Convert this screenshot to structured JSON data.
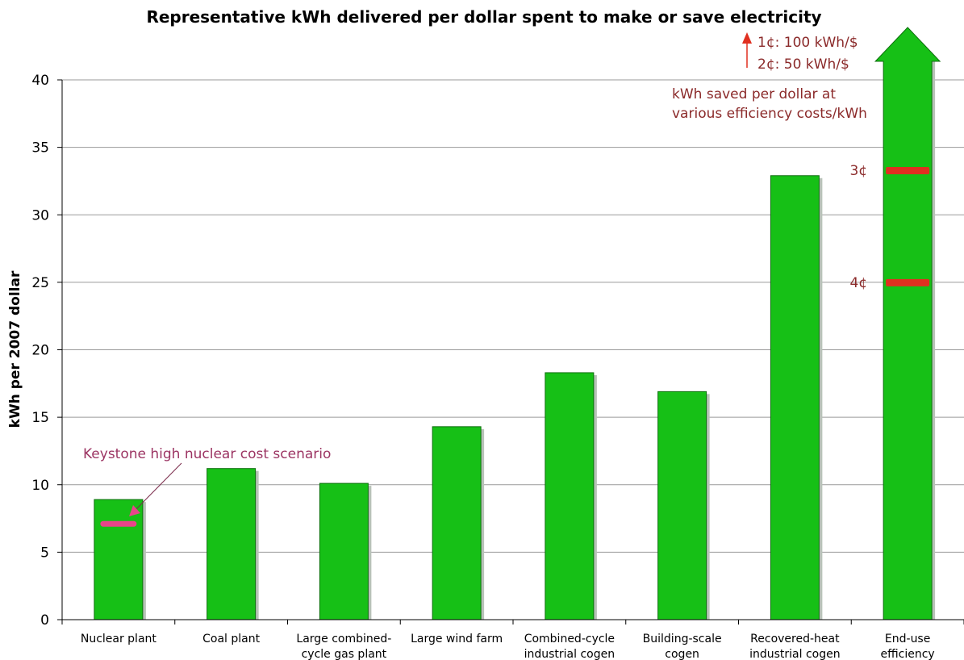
{
  "chart_data": {
    "type": "bar",
    "title": "Representative kWh delivered per dollar spent to make or save electricity",
    "xlabel": "",
    "ylabel": "kWh per 2007 dollar",
    "ylim": [
      0,
      40
    ],
    "yticks": [
      0,
      5,
      10,
      15,
      20,
      25,
      30,
      35,
      40
    ],
    "grid": true,
    "categories": [
      [
        "Nuclear plant"
      ],
      [
        "Coal plant"
      ],
      [
        "Large combined-",
        "cycle gas plant"
      ],
      [
        "Large wind farm"
      ],
      [
        "Combined-cycle",
        "industrial cogen"
      ],
      [
        "Building-scale",
        "cogen"
      ],
      [
        "Recovered-heat",
        "industrial cogen"
      ],
      [
        "End-use",
        "efficiency"
      ]
    ],
    "values": [
      8.9,
      11.2,
      10.1,
      14.3,
      18.3,
      16.9,
      32.9,
      null
    ],
    "bar_color": "#16c016",
    "shadow_color": "#b8c2b8",
    "annotations": {
      "nuclear_scenario": {
        "label": "Keystone high nuclear cost scenario",
        "value": 7.1,
        "color": "#e8458a"
      },
      "efficiency_note": {
        "label_lines": [
          "kWh saved per dollar at",
          "various efficiency costs/kWh"
        ]
      },
      "arrow_labels": [
        "1¢: 100 kWh/$",
        "2¢: 50 kWh/$"
      ],
      "efficiency_marks": [
        {
          "label": "3¢",
          "value": 33.3
        },
        {
          "label": "4¢",
          "value": 25.0
        }
      ],
      "mark_color": "#e03020",
      "text_color": "#8b2a2a"
    }
  }
}
